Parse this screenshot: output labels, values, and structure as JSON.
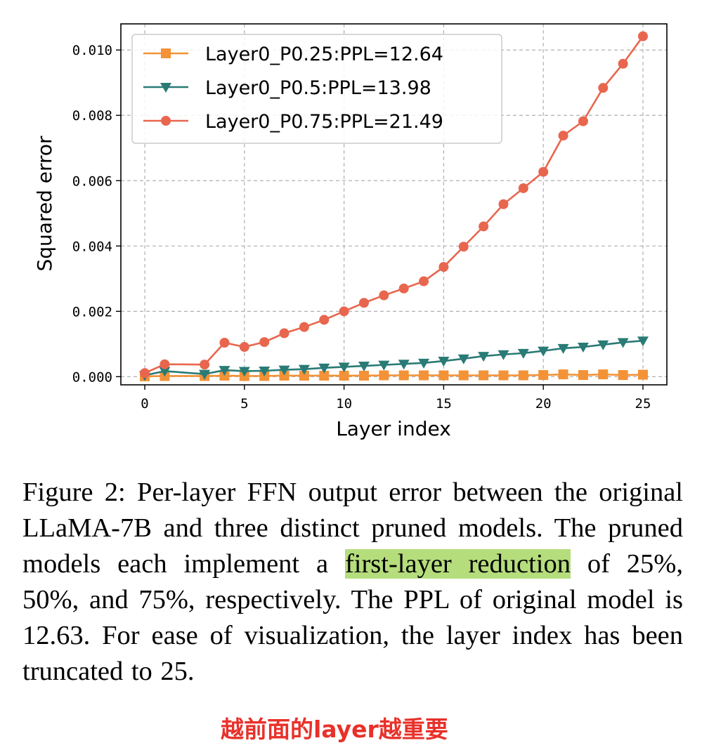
{
  "chart_data": {
    "type": "line",
    "xlabel": "Layer index",
    "ylabel": "Squared error",
    "xlim": [
      -1.2,
      26.2
    ],
    "ylim": [
      -0.00025,
      0.0108
    ],
    "xticks": [
      0,
      5,
      10,
      15,
      20,
      25
    ],
    "yticks": [
      0.0,
      0.002,
      0.004,
      0.006,
      0.008,
      0.01
    ],
    "ytick_labels": [
      "0.000",
      "0.002",
      "0.004",
      "0.006",
      "0.008",
      "0.010"
    ],
    "grid": true,
    "legend_position": "top-left",
    "x": [
      0,
      1,
      3,
      4,
      5,
      6,
      7,
      8,
      9,
      10,
      11,
      12,
      13,
      14,
      15,
      16,
      17,
      18,
      19,
      20,
      21,
      22,
      23,
      24,
      25
    ],
    "series": [
      {
        "name": "Layer0_P0.25:PPL=12.64",
        "color": "#f39237",
        "marker": "square",
        "values": [
          1e-05,
          2e-05,
          2e-05,
          3e-05,
          2e-05,
          2e-05,
          3e-05,
          3e-05,
          3e-05,
          3e-05,
          3e-05,
          4e-05,
          4e-05,
          4e-05,
          4e-05,
          4e-05,
          4e-05,
          4e-05,
          4e-05,
          5e-05,
          7e-05,
          5e-05,
          7e-05,
          5e-05,
          6e-05
        ]
      },
      {
        "name": "Layer0_P0.5:PPL=13.98",
        "color": "#2a7b75",
        "marker": "triangle-down",
        "values": [
          4e-05,
          0.00017,
          8e-05,
          0.0002,
          0.00017,
          0.00018,
          0.00021,
          0.00023,
          0.00027,
          0.0003,
          0.00033,
          0.00036,
          0.00039,
          0.00042,
          0.00048,
          0.00055,
          0.00063,
          0.00068,
          0.00072,
          0.00079,
          0.00087,
          0.00091,
          0.00098,
          0.00105,
          0.0011
        ]
      },
      {
        "name": "Layer0_P0.75:PPL=21.49",
        "color": "#e8664e",
        "marker": "circle",
        "values": [
          0.00011,
          0.00038,
          0.00037,
          0.00104,
          0.00091,
          0.00106,
          0.00133,
          0.00152,
          0.00174,
          0.002,
          0.00226,
          0.00249,
          0.0027,
          0.00292,
          0.00336,
          0.00398,
          0.0046,
          0.00528,
          0.00577,
          0.00627,
          0.00738,
          0.00782,
          0.00884,
          0.00958,
          0.01042
        ]
      }
    ]
  },
  "caption": {
    "part1": "Figure 2: Per-layer FFN output error between the original LLaMA-7B and three distinct pruned models. The pruned models each implement a ",
    "highlight": "first-layer reduction",
    "part2": " of 25%, 50%, and 75%, respectively. The PPL of original model is 12.63. For ease of visualization, the layer index has been truncated to 25."
  },
  "annotation": "越前面的layer越重要"
}
